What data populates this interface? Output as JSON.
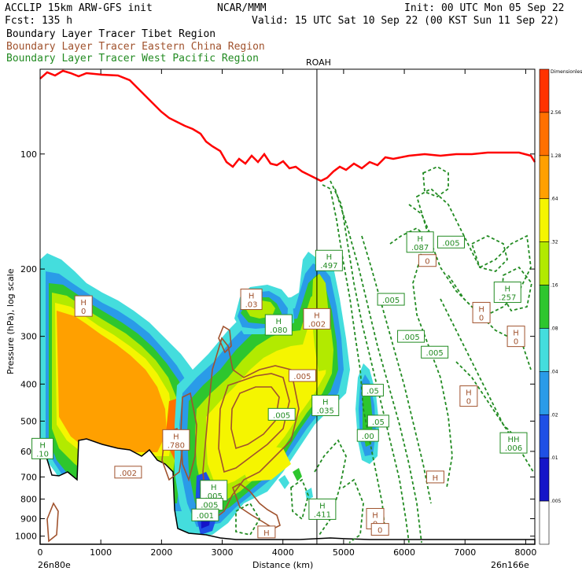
{
  "header": {
    "left_line1": "ACCLIP 15km ARW-GFS init",
    "center_line1": "NCAR/MMM",
    "right_line1": "Init: 00 UTC Mon 05 Sep 22",
    "left_line2": "Fcst:  135 h",
    "right_line2": "Valid: 15 UTC Sat 10 Sep 22 (00 KST Sun 11 Sep 22)"
  },
  "legend": [
    {
      "text": "Boundary Layer Tracer  Tibet Region",
      "color": "#000000"
    },
    {
      "text": "Boundary Layer Tracer  Eastern China Region",
      "color": "#a0522d"
    },
    {
      "text": "Boundary Layer Tracer  West Pacific Region",
      "color": "#228b22"
    }
  ],
  "chart_data": {
    "type": "heatmap",
    "xlabel": "Distance (km)",
    "ylabel": "Pressure (hPa), log scale",
    "x_ticks": [
      "0",
      "1000",
      "2000",
      "3000",
      "4000",
      "5000",
      "6000",
      "7000",
      "8000"
    ],
    "y_ticks": [
      "100",
      "200",
      "300",
      "400",
      "500",
      "600",
      "700",
      "800",
      "900",
      "1000"
    ],
    "x_start_label": "26n80e",
    "x_end_label": "26n166e",
    "marker_label": "ROAH",
    "marker_x_km": 4560,
    "colorbar": {
      "levels": [
        "Dimensionless",
        "2.56",
        "1.28",
        ".64",
        ".32",
        ".16",
        ".08",
        ".04",
        ".02",
        ".01",
        ".005"
      ],
      "colors": [
        "#ff3300",
        "#ff7000",
        "#ffa000",
        "#f5f500",
        "#b2ea00",
        "#2ec62e",
        "#44dddd",
        "#2a9be8",
        "#1e50e6",
        "#1414c8",
        "#ffffff"
      ]
    },
    "tropopause_color": "#ff0000",
    "labels": [
      {
        "text": "H",
        "value": "0",
        "color": "#a0522d",
        "x": 715,
        "p": 250
      },
      {
        "text": "H",
        "value": ".10",
        "color": "#228b22",
        "x": 40,
        "p": 590
      },
      {
        "text": "",
        "value": ".002",
        "color": "#a0522d",
        "x": 1450,
        "p": 680
      },
      {
        "text": "H",
        "value": ".780",
        "color": "#a0522d",
        "x": 2240,
        "p": 560
      },
      {
        "text": "H",
        "value": ".03",
        "color": "#a0522d",
        "x": 3480,
        "p": 240
      },
      {
        "text": "H",
        "value": ".080",
        "color": "#228b22",
        "x": 3930,
        "p": 280
      },
      {
        "text": "H",
        "value": ".002",
        "color": "#a0522d",
        "x": 4560,
        "p": 270
      },
      {
        "text": "H",
        "value": ".497",
        "color": "#228b22",
        "x": 4760,
        "p": 190
      },
      {
        "text": "",
        "value": ".005",
        "color": "#a0522d",
        "x": 4320,
        "p": 380
      },
      {
        "text": "",
        "value": ".005",
        "color": "#228b22",
        "x": 3980,
        "p": 480
      },
      {
        "text": "H",
        "value": ".035",
        "color": "#228b22",
        "x": 4700,
        "p": 455
      },
      {
        "text": "",
        "value": ".05",
        "color": "#228b22",
        "x": 5480,
        "p": 415
      },
      {
        "text": "",
        "value": ".05",
        "color": "#228b22",
        "x": 5570,
        "p": 500
      },
      {
        "text": "",
        "value": ".00",
        "color": "#228b22",
        "x": 5400,
        "p": 545
      },
      {
        "text": "",
        "value": ".005",
        "color": "#228b22",
        "x": 5780,
        "p": 240
      },
      {
        "text": "",
        "value": ".005",
        "color": "#228b22",
        "x": 6110,
        "p": 300
      },
      {
        "text": "",
        "value": ".005",
        "color": "#228b22",
        "x": 6500,
        "p": 330
      },
      {
        "text": "H",
        "value": ".087",
        "color": "#228b22",
        "x": 6260,
        "p": 170
      },
      {
        "text": "",
        "value": "0",
        "color": "#a0522d",
        "x": 6380,
        "p": 190
      },
      {
        "text": "",
        "value": ".005",
        "color": "#228b22",
        "x": 6770,
        "p": 170
      },
      {
        "text": "H",
        "value": ".257",
        "color": "#228b22",
        "x": 7700,
        "p": 230
      },
      {
        "text": "H",
        "value": "0",
        "color": "#a0522d",
        "x": 7270,
        "p": 260
      },
      {
        "text": "H",
        "value": "0",
        "color": "#a0522d",
        "x": 7840,
        "p": 300
      },
      {
        "text": "H",
        "value": "0",
        "color": "#a0522d",
        "x": 7060,
        "p": 430
      },
      {
        "text": "HH",
        "value": ".006",
        "color": "#228b22",
        "x": 7800,
        "p": 570
      },
      {
        "text": "H",
        "value": "",
        "color": "#a0522d",
        "x": 6510,
        "p": 700
      },
      {
        "text": "H",
        "value": ".005",
        "color": "#228b22",
        "x": 2860,
        "p": 760
      },
      {
        "text": "",
        "value": ".005",
        "color": "#228b22",
        "x": 2790,
        "p": 825
      },
      {
        "text": "",
        "value": ".001",
        "color": "#228b22",
        "x": 2720,
        "p": 880
      },
      {
        "text": "H",
        "value": ".411",
        "color": "#228b22",
        "x": 4650,
        "p": 850
      },
      {
        "text": "H",
        "value": "0",
        "color": "#a0522d",
        "x": 5520,
        "p": 900
      },
      {
        "text": "",
        "value": "0",
        "color": "#a0522d",
        "x": 5600,
        "p": 960
      },
      {
        "text": "H",
        "value": "",
        "color": "#a0522d",
        "x": 3730,
        "p": 975
      }
    ]
  }
}
